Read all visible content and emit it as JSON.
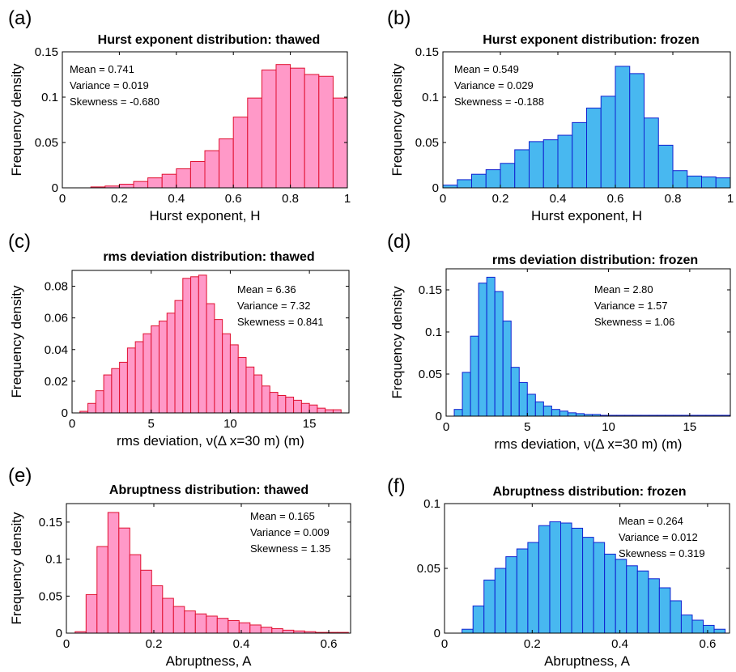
{
  "figure": {
    "colors": {
      "thawed_fill": "#ff99c8",
      "thawed_edge": "#e01030",
      "frozen_fill": "#48b8f0",
      "frozen_edge": "#1020d0"
    }
  },
  "chart_data": [
    {
      "id": "a",
      "panel_label": "(a)",
      "type": "bar",
      "variant": "thawed",
      "title": "Hurst exponent distribution: thawed",
      "xlabel": "Hurst exponent, H",
      "ylabel": "Frequency density",
      "xlim": [
        0,
        1
      ],
      "ylim": [
        0,
        0.15
      ],
      "xticks": [
        0,
        0.2,
        0.4,
        0.6,
        0.8,
        1
      ],
      "xtick_labels": [
        "0",
        "0.2",
        "0.4",
        "0.6",
        "0.8",
        "1"
      ],
      "yticks": [
        0,
        0.05,
        0.1,
        0.15
      ],
      "ytick_labels": [
        "0",
        "0.05",
        "0.1",
        "0.15"
      ],
      "bin_edges": [
        0,
        0.05,
        0.1,
        0.15,
        0.2,
        0.25,
        0.3,
        0.35,
        0.4,
        0.45,
        0.5,
        0.55,
        0.6,
        0.65,
        0.7,
        0.75,
        0.8,
        0.85,
        0.9,
        0.95
      ],
      "values": [
        0,
        0,
        0.001,
        0.002,
        0.004,
        0.007,
        0.011,
        0.015,
        0.021,
        0.029,
        0.041,
        0.054,
        0.078,
        0.099,
        0.13,
        0.136,
        0.132,
        0.125,
        0.123,
        0.099
      ],
      "stats": {
        "position": "top-left",
        "lines": [
          "Mean = 0.741",
          "Variance = 0.019",
          "Skewness = -0.680"
        ]
      }
    },
    {
      "id": "b",
      "panel_label": "(b)",
      "type": "bar",
      "variant": "frozen",
      "title": "Hurst exponent distribution: frozen",
      "xlabel": "Hurst exponent, H",
      "ylabel": "Frequency density",
      "xlim": [
        0,
        1
      ],
      "ylim": [
        0,
        0.15
      ],
      "xticks": [
        0,
        0.2,
        0.4,
        0.6,
        0.8,
        1
      ],
      "xtick_labels": [
        "0",
        "0.2",
        "0.4",
        "0.6",
        "0.8",
        "1"
      ],
      "yticks": [
        0,
        0.05,
        0.1,
        0.15
      ],
      "ytick_labels": [
        "0",
        "0.05",
        "0.1",
        "0.15"
      ],
      "bin_edges": [
        0,
        0.05,
        0.1,
        0.15,
        0.2,
        0.25,
        0.3,
        0.35,
        0.4,
        0.45,
        0.5,
        0.55,
        0.6,
        0.65,
        0.7,
        0.75,
        0.8,
        0.85,
        0.9,
        0.95
      ],
      "values": [
        0.003,
        0.009,
        0.015,
        0.02,
        0.027,
        0.042,
        0.051,
        0.053,
        0.058,
        0.072,
        0.088,
        0.101,
        0.134,
        0.126,
        0.077,
        0.047,
        0.019,
        0.013,
        0.012,
        0.011
      ],
      "stats": {
        "position": "top-left",
        "lines": [
          "Mean = 0.549",
          "Variance = 0.029",
          "Skewness = -0.188"
        ]
      }
    },
    {
      "id": "c",
      "panel_label": "(c)",
      "type": "bar",
      "variant": "thawed",
      "title": "rms deviation distribution: thawed",
      "xlabel": "rms deviation, ν(Δ x=30 m) (m)",
      "ylabel": "Frequency density",
      "xlim": [
        0,
        17.5
      ],
      "ylim": [
        0,
        0.09
      ],
      "xticks": [
        0,
        5,
        10,
        15
      ],
      "xtick_labels": [
        "0",
        "5",
        "10",
        "15"
      ],
      "yticks": [
        0,
        0.02,
        0.04,
        0.06,
        0.08
      ],
      "ytick_labels": [
        "0",
        "0.02",
        "0.04",
        "0.06",
        "0.08"
      ],
      "bin_edges": [
        0.5,
        1.0,
        1.5,
        2.0,
        2.5,
        3.0,
        3.5,
        4.0,
        4.5,
        5.0,
        5.5,
        6.0,
        6.5,
        7.0,
        7.5,
        8.0,
        8.5,
        9.0,
        9.5,
        10.0,
        10.5,
        11.0,
        11.5,
        12.0,
        12.5,
        13.0,
        13.5,
        14.0,
        14.5,
        15.0,
        15.5,
        16.0,
        16.5
      ],
      "values": [
        0.001,
        0.006,
        0.014,
        0.024,
        0.028,
        0.032,
        0.041,
        0.045,
        0.05,
        0.055,
        0.058,
        0.063,
        0.071,
        0.085,
        0.086,
        0.087,
        0.069,
        0.059,
        0.05,
        0.043,
        0.035,
        0.029,
        0.024,
        0.017,
        0.013,
        0.011,
        0.01,
        0.008,
        0.006,
        0.005,
        0.003,
        0.002,
        0.002
      ],
      "stats": {
        "position": "top-right",
        "lines": [
          "Mean = 6.36",
          "Variance = 7.32",
          "Skewness = 0.841"
        ]
      }
    },
    {
      "id": "d",
      "panel_label": "(d)",
      "type": "bar",
      "variant": "frozen",
      "title": "rms deviation distribution: frozen",
      "xlabel": "rms deviation, ν(Δ x=30 m)  (m)",
      "ylabel": "Frequency density",
      "xlim": [
        0,
        17.5
      ],
      "ylim": [
        0,
        0.175
      ],
      "xticks": [
        0,
        5,
        10,
        15
      ],
      "xtick_labels": [
        "0",
        "5",
        "10",
        "15"
      ],
      "yticks": [
        0,
        0.05,
        0.1,
        0.15
      ],
      "ytick_labels": [
        "0",
        "0.05",
        "0.1",
        "0.15"
      ],
      "bin_edges": [
        0.5,
        1.0,
        1.5,
        2.0,
        2.5,
        3.0,
        3.5,
        4.0,
        4.5,
        5.0,
        5.5,
        6.0,
        6.5,
        7.0,
        7.5,
        8.0,
        8.5,
        9.0,
        9.5,
        10.0,
        10.5,
        11.0,
        11.5,
        12.0,
        12.5,
        13.0,
        13.5,
        14.0,
        14.5,
        15.0,
        15.5,
        16.0,
        16.5,
        17.0
      ],
      "values": [
        0.008,
        0.052,
        0.095,
        0.158,
        0.165,
        0.148,
        0.113,
        0.058,
        0.04,
        0.026,
        0.017,
        0.012,
        0.008,
        0.006,
        0.004,
        0.003,
        0.002,
        0.002,
        0.001,
        0.001,
        0.001,
        0.001,
        0.001,
        0.001,
        0.001,
        0.001,
        0.001,
        0.001,
        0.001,
        0.001,
        0.001,
        0.001,
        0.001,
        0.001
      ],
      "stats": {
        "position": "top-right",
        "lines": [
          "Mean = 2.80",
          "Variance =  1.57",
          "Skewness = 1.06"
        ]
      }
    },
    {
      "id": "e",
      "panel_label": "(e)",
      "type": "bar",
      "variant": "thawed",
      "title": "Abruptness distribution: thawed",
      "xlabel": "Abruptness, A",
      "ylabel": "Frequency density",
      "xlim": [
        0,
        0.65
      ],
      "ylim": [
        0,
        0.175
      ],
      "xticks": [
        0,
        0.2,
        0.4,
        0.6
      ],
      "xtick_labels": [
        "0",
        "0.2",
        "0.4",
        "0.6"
      ],
      "yticks": [
        0,
        0.05,
        0.1,
        0.15
      ],
      "ytick_labels": [
        "0",
        "0.05",
        "0.1",
        "0.15"
      ],
      "bin_edges": [
        0.02,
        0.045,
        0.07,
        0.095,
        0.12,
        0.145,
        0.17,
        0.195,
        0.22,
        0.245,
        0.27,
        0.295,
        0.32,
        0.345,
        0.37,
        0.395,
        0.42,
        0.445,
        0.47,
        0.495,
        0.52,
        0.545,
        0.57,
        0.595,
        0.62
      ],
      "values": [
        0.002,
        0.052,
        0.117,
        0.163,
        0.142,
        0.106,
        0.085,
        0.064,
        0.047,
        0.036,
        0.03,
        0.026,
        0.023,
        0.02,
        0.017,
        0.014,
        0.011,
        0.008,
        0.006,
        0.004,
        0.003,
        0.002,
        0.001,
        0.001,
        0.001
      ],
      "stats": {
        "position": "top-right",
        "lines": [
          "Mean = 0.165",
          "Variance = 0.009",
          "Skewness =  1.35"
        ]
      }
    },
    {
      "id": "f",
      "panel_label": "(f)",
      "type": "bar",
      "variant": "frozen",
      "title": "Abruptness distribution: frozen",
      "xlabel": "Abruptness, A",
      "ylabel": "",
      "xlim": [
        0,
        0.65
      ],
      "ylim": [
        0,
        0.1
      ],
      "xticks": [
        0,
        0.2,
        0.4,
        0.6
      ],
      "xtick_labels": [
        "0",
        "0.2",
        "0.4",
        "0.6"
      ],
      "yticks": [
        0,
        0.05,
        0.1
      ],
      "ytick_labels": [
        "0",
        "0.05",
        "0.1"
      ],
      "bin_edges": [
        0.04,
        0.065,
        0.09,
        0.115,
        0.14,
        0.165,
        0.19,
        0.215,
        0.24,
        0.265,
        0.29,
        0.315,
        0.34,
        0.365,
        0.39,
        0.415,
        0.44,
        0.465,
        0.49,
        0.515,
        0.54,
        0.565,
        0.59,
        0.615
      ],
      "values": [
        0.003,
        0.021,
        0.041,
        0.05,
        0.059,
        0.065,
        0.07,
        0.083,
        0.086,
        0.085,
        0.081,
        0.074,
        0.07,
        0.061,
        0.057,
        0.052,
        0.048,
        0.042,
        0.035,
        0.025,
        0.014,
        0.01,
        0.006,
        0.003
      ],
      "stats": {
        "position": "top-right",
        "lines": [
          "Mean = 0.264",
          "Variance = 0.012",
          "Skewness = 0.319"
        ]
      }
    }
  ]
}
